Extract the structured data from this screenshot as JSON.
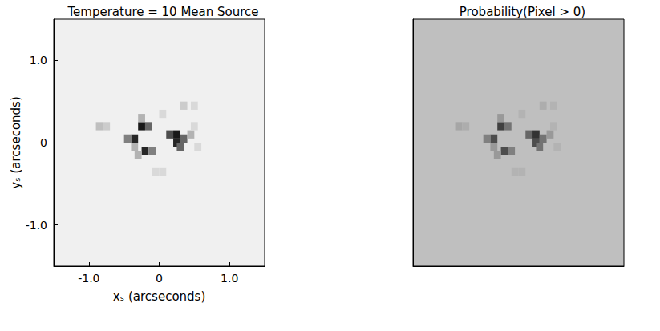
{
  "chart_data": [
    {
      "type": "heatmap",
      "title": "Temperature = 10 Mean Source",
      "xlabel": "xₛ (arcseconds)",
      "ylabel": "yₛ (arcseconds)",
      "xlim": [
        -1.5,
        1.5
      ],
      "ylim": [
        -1.5,
        1.5
      ],
      "xticks": [
        {
          "value": -1,
          "label": "-1.0"
        },
        0,
        {
          "value": 1,
          "label": "1.0"
        }
      ],
      "yticks": [
        {
          "value": -1,
          "label": "-1.0"
        },
        0,
        {
          "value": 1,
          "label": "1.0"
        }
      ],
      "background_value": 0.06,
      "cell_size": 0.1,
      "cells": [
        [
          -0.35,
          0.05,
          0.85
        ],
        [
          -0.45,
          0.05,
          0.5
        ],
        [
          -0.35,
          -0.05,
          0.3
        ],
        [
          -0.25,
          0.2,
          0.9
        ],
        [
          -0.15,
          0.2,
          0.6
        ],
        [
          -0.25,
          0.3,
          0.3
        ],
        [
          -0.2,
          -0.1,
          0.85
        ],
        [
          -0.1,
          -0.1,
          0.5
        ],
        [
          -0.3,
          -0.15,
          0.3
        ],
        [
          0.15,
          0.1,
          0.7
        ],
        [
          0.25,
          0.1,
          0.9
        ],
        [
          0.35,
          0.05,
          0.6
        ],
        [
          0.25,
          0.0,
          0.85
        ],
        [
          0.3,
          -0.05,
          0.6
        ],
        [
          0.45,
          0.1,
          0.3
        ],
        [
          -0.85,
          0.2,
          0.25
        ],
        [
          -0.75,
          0.2,
          0.2
        ],
        [
          0.35,
          0.45,
          0.2
        ],
        [
          0.5,
          0.45,
          0.15
        ],
        [
          0.05,
          0.35,
          0.15
        ],
        [
          -0.05,
          -0.35,
          0.15
        ],
        [
          0.05,
          -0.35,
          0.15
        ],
        [
          0.55,
          -0.05,
          0.15
        ],
        [
          0.5,
          0.2,
          0.15
        ]
      ]
    },
    {
      "type": "heatmap",
      "title": "Probability(Pixel > 0)",
      "tick_labels": false,
      "xlim": [
        -1.5,
        1.5
      ],
      "ylim": [
        -1.5,
        1.5
      ],
      "background_value": 0.25,
      "cell_size": 0.1,
      "cells": [
        [
          -0.35,
          0.05,
          0.7
        ],
        [
          -0.45,
          0.05,
          0.5
        ],
        [
          -0.35,
          -0.05,
          0.4
        ],
        [
          -0.25,
          0.2,
          0.75
        ],
        [
          -0.15,
          0.2,
          0.55
        ],
        [
          -0.25,
          0.3,
          0.4
        ],
        [
          -0.2,
          -0.1,
          0.7
        ],
        [
          -0.1,
          -0.1,
          0.5
        ],
        [
          -0.3,
          -0.15,
          0.4
        ],
        [
          0.15,
          0.1,
          0.6
        ],
        [
          0.25,
          0.1,
          0.8
        ],
        [
          0.35,
          0.05,
          0.55
        ],
        [
          0.25,
          0.0,
          0.7
        ],
        [
          0.3,
          -0.05,
          0.55
        ],
        [
          0.45,
          0.1,
          0.4
        ],
        [
          -0.85,
          0.2,
          0.35
        ],
        [
          -0.75,
          0.2,
          0.32
        ],
        [
          0.35,
          0.45,
          0.32
        ],
        [
          0.5,
          0.45,
          0.3
        ],
        [
          0.05,
          0.35,
          0.3
        ],
        [
          -0.05,
          -0.35,
          0.3
        ],
        [
          0.05,
          -0.35,
          0.3
        ],
        [
          0.55,
          -0.05,
          0.3
        ],
        [
          0.5,
          0.2,
          0.3
        ]
      ]
    }
  ]
}
